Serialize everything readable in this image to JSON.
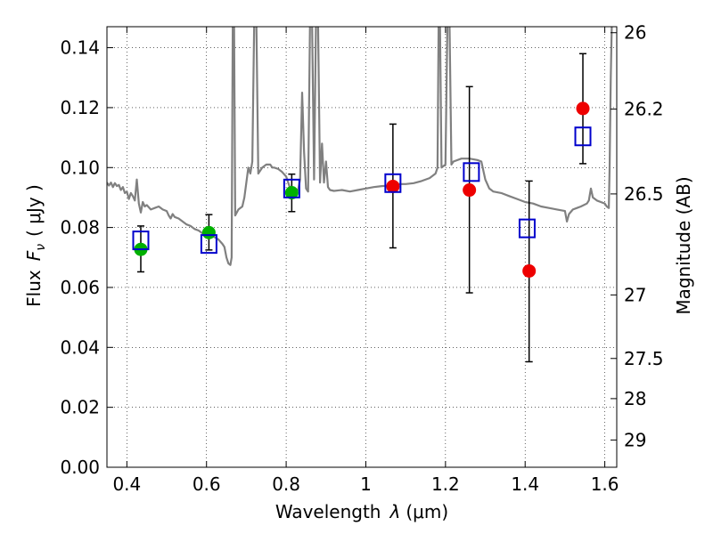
{
  "chart_data": {
    "type": "scatter",
    "xlabel": "Wavelength",
    "xlabel_symbol": "λ",
    "xlabel_unit": "(μm)",
    "ylabel": "Flux",
    "ylabel_symbol": "F",
    "ylabel_subscript": "ν",
    "ylabel_unit": "( μJy )",
    "y2label": "Magnitude (AB)",
    "xlim": [
      0.35,
      1.63
    ],
    "ylim": [
      0.0,
      0.147
    ],
    "grid": true,
    "x_ticks": [
      0.4,
      0.6,
      0.8,
      1.0,
      1.2,
      1.4,
      1.6
    ],
    "x_tick_labels": [
      "0.4",
      "0.6",
      "0.8",
      "1",
      "1.2",
      "1.4",
      "1.6"
    ],
    "y_ticks": [
      0.0,
      0.02,
      0.04,
      0.06,
      0.08,
      0.1,
      0.12,
      0.14
    ],
    "y_tick_labels": [
      "0.00",
      "0.02",
      "0.04",
      "0.06",
      "0.08",
      "0.10",
      "0.12",
      "0.14"
    ],
    "mag_ticks": [
      {
        "label": "26",
        "flux": 0.145
      },
      {
        "label": "26.2",
        "flux": 0.1195
      },
      {
        "label": "26.5",
        "flux": 0.0912
      },
      {
        "label": "27",
        "flux": 0.0575
      },
      {
        "label": "27.5",
        "flux": 0.0363
      },
      {
        "label": "28",
        "flux": 0.0229
      },
      {
        "label": "29",
        "flux": 0.0091
      }
    ],
    "colors": {
      "model": "#808080",
      "optical_points": "#00b000",
      "nir_points": "#ee0000",
      "model_photometry": "#0000cc",
      "errorbars": "#000000"
    },
    "series": [
      {
        "marker": "circle",
        "color": "#00b000",
        "points": [
          {
            "x": 0.435,
            "y": 0.0727,
            "yerr": [
              0.0652,
              0.0805
            ]
          },
          {
            "x": 0.606,
            "y": 0.0783,
            "yerr": [
              0.0725,
              0.0843
            ]
          },
          {
            "x": 0.814,
            "y": 0.0916,
            "yerr": [
              0.0853,
              0.0978
            ]
          }
        ]
      },
      {
        "marker": "circle",
        "color": "#ee0000",
        "points": [
          {
            "x": 1.068,
            "y": 0.0937,
            "yerr": [
              0.0732,
              0.1145
            ]
          },
          {
            "x": 1.26,
            "y": 0.0925,
            "yerr": [
              0.0582,
              0.127
            ]
          },
          {
            "x": 1.41,
            "y": 0.0655,
            "yerr": [
              0.0352,
              0.0955
            ]
          },
          {
            "x": 1.545,
            "y": 0.1197,
            "yerr": [
              0.1013,
              0.138
            ]
          }
        ]
      },
      {
        "marker": "open-square",
        "color": "#0000cc",
        "points": [
          {
            "x": 0.435,
            "y": 0.0757
          },
          {
            "x": 0.606,
            "y": 0.0745
          },
          {
            "x": 0.814,
            "y": 0.093
          },
          {
            "x": 1.068,
            "y": 0.0948
          },
          {
            "x": 1.265,
            "y": 0.0985
          },
          {
            "x": 1.405,
            "y": 0.0797
          },
          {
            "x": 1.545,
            "y": 0.1104
          }
        ]
      },
      {
        "type": "line",
        "color": "#808080",
        "points": [
          [
            0.35,
            0.095
          ],
          [
            0.355,
            0.094
          ],
          [
            0.36,
            0.095
          ],
          [
            0.365,
            0.0935
          ],
          [
            0.37,
            0.0948
          ],
          [
            0.375,
            0.0938
          ],
          [
            0.38,
            0.0942
          ],
          [
            0.385,
            0.0925
          ],
          [
            0.39,
            0.0935
          ],
          [
            0.395,
            0.0915
          ],
          [
            0.4,
            0.092
          ],
          [
            0.405,
            0.0895
          ],
          [
            0.41,
            0.0915
          ],
          [
            0.415,
            0.0905
          ],
          [
            0.42,
            0.089
          ],
          [
            0.425,
            0.096
          ],
          [
            0.43,
            0.088
          ],
          [
            0.435,
            0.085
          ],
          [
            0.44,
            0.0885
          ],
          [
            0.445,
            0.087
          ],
          [
            0.45,
            0.0875
          ],
          [
            0.46,
            0.086
          ],
          [
            0.47,
            0.0865
          ],
          [
            0.48,
            0.087
          ],
          [
            0.49,
            0.086
          ],
          [
            0.5,
            0.0855
          ],
          [
            0.505,
            0.084
          ],
          [
            0.51,
            0.083
          ],
          [
            0.515,
            0.0845
          ],
          [
            0.52,
            0.0835
          ],
          [
            0.53,
            0.083
          ],
          [
            0.54,
            0.082
          ],
          [
            0.55,
            0.081
          ],
          [
            0.56,
            0.0805
          ],
          [
            0.57,
            0.0795
          ],
          [
            0.58,
            0.079
          ],
          [
            0.59,
            0.078
          ],
          [
            0.6,
            0.0775
          ],
          [
            0.61,
            0.0772
          ],
          [
            0.62,
            0.0768
          ],
          [
            0.63,
            0.076
          ],
          [
            0.64,
            0.0745
          ],
          [
            0.645,
            0.0735
          ],
          [
            0.65,
            0.07
          ],
          [
            0.655,
            0.068
          ],
          [
            0.66,
            0.0675
          ],
          [
            0.663,
            0.07
          ],
          [
            0.666,
            0.15
          ],
          [
            0.669,
            0.15
          ],
          [
            0.672,
            0.084
          ],
          [
            0.68,
            0.086
          ],
          [
            0.69,
            0.087
          ],
          [
            0.695,
            0.09
          ],
          [
            0.7,
            0.095
          ],
          [
            0.705,
            0.1
          ],
          [
            0.71,
            0.098
          ],
          [
            0.715,
            0.102
          ],
          [
            0.72,
            0.15
          ],
          [
            0.725,
            0.15
          ],
          [
            0.73,
            0.098
          ],
          [
            0.74,
            0.1
          ],
          [
            0.75,
            0.101
          ],
          [
            0.76,
            0.101
          ],
          [
            0.765,
            0.1
          ],
          [
            0.77,
            0.1
          ],
          [
            0.78,
            0.0995
          ],
          [
            0.79,
            0.0985
          ],
          [
            0.8,
            0.097
          ],
          [
            0.81,
            0.093
          ],
          [
            0.82,
            0.092
          ],
          [
            0.83,
            0.0925
          ],
          [
            0.835,
            0.096
          ],
          [
            0.84,
            0.125
          ],
          [
            0.845,
            0.105
          ],
          [
            0.85,
            0.093
          ],
          [
            0.855,
            0.092
          ],
          [
            0.86,
            0.15
          ],
          [
            0.865,
            0.15
          ],
          [
            0.87,
            0.096
          ],
          [
            0.875,
            0.15
          ],
          [
            0.88,
            0.15
          ],
          [
            0.885,
            0.095
          ],
          [
            0.89,
            0.108
          ],
          [
            0.895,
            0.095
          ],
          [
            0.9,
            0.102
          ],
          [
            0.905,
            0.0935
          ],
          [
            0.91,
            0.0925
          ],
          [
            0.92,
            0.0922
          ],
          [
            0.94,
            0.0925
          ],
          [
            0.96,
            0.092
          ],
          [
            0.98,
            0.0925
          ],
          [
            1.0,
            0.093
          ],
          [
            1.02,
            0.0935
          ],
          [
            1.04,
            0.0938
          ],
          [
            1.06,
            0.094
          ],
          [
            1.08,
            0.0945
          ],
          [
            1.1,
            0.0945
          ],
          [
            1.12,
            0.0948
          ],
          [
            1.14,
            0.0955
          ],
          [
            1.16,
            0.0965
          ],
          [
            1.175,
            0.098
          ],
          [
            1.18,
            0.1
          ],
          [
            1.183,
            0.15
          ],
          [
            1.186,
            0.15
          ],
          [
            1.19,
            0.1
          ],
          [
            1.2,
            0.101
          ],
          [
            1.205,
            0.15
          ],
          [
            1.21,
            0.15
          ],
          [
            1.215,
            0.101
          ],
          [
            1.22,
            0.102
          ],
          [
            1.24,
            0.103
          ],
          [
            1.26,
            0.103
          ],
          [
            1.28,
            0.1025
          ],
          [
            1.29,
            0.102
          ],
          [
            1.3,
            0.096
          ],
          [
            1.31,
            0.093
          ],
          [
            1.32,
            0.092
          ],
          [
            1.34,
            0.0915
          ],
          [
            1.36,
            0.0905
          ],
          [
            1.38,
            0.0895
          ],
          [
            1.4,
            0.0885
          ],
          [
            1.42,
            0.088
          ],
          [
            1.44,
            0.087
          ],
          [
            1.46,
            0.0865
          ],
          [
            1.48,
            0.086
          ],
          [
            1.5,
            0.0855
          ],
          [
            1.505,
            0.082
          ],
          [
            1.51,
            0.0845
          ],
          [
            1.52,
            0.086
          ],
          [
            1.53,
            0.0865
          ],
          [
            1.54,
            0.087
          ],
          [
            1.555,
            0.088
          ],
          [
            1.56,
            0.089
          ],
          [
            1.565,
            0.093
          ],
          [
            1.57,
            0.09
          ],
          [
            1.58,
            0.089
          ],
          [
            1.59,
            0.0885
          ],
          [
            1.6,
            0.088
          ],
          [
            1.605,
            0.087
          ],
          [
            1.61,
            0.0865
          ],
          [
            1.612,
            0.1
          ],
          [
            1.615,
            0.13
          ],
          [
            1.618,
            0.15
          ],
          [
            1.625,
            0.15
          ],
          [
            1.63,
            0.15
          ]
        ]
      }
    ]
  }
}
